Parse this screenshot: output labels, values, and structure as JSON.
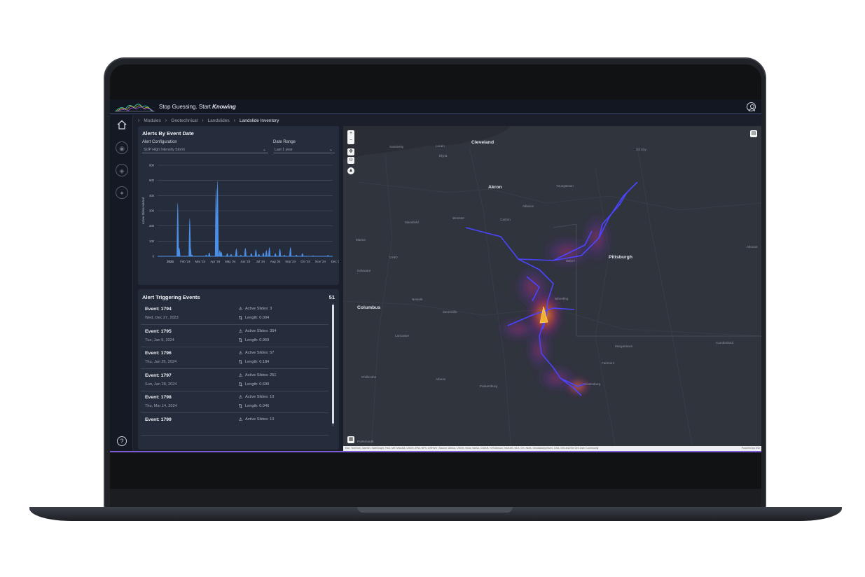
{
  "header": {
    "tagline_prefix": "Stop Guessing. Start ",
    "tagline_emphasis": "Knowing"
  },
  "breadcrumb": [
    "Modules",
    "Geotechnical",
    "Landslides",
    "Landslide Inventory"
  ],
  "sidebar": {
    "icons": [
      "home-icon",
      "module-icon-1",
      "module-icon-2",
      "module-icon-3",
      "help-icon"
    ],
    "help_label": "?"
  },
  "alerts_panel": {
    "title": "Alerts By Event Date",
    "config_label": "Alert Configuration",
    "config_value": "SOP High Intensity Storm",
    "range_label": "Date Range",
    "range_value": "Last 1 year"
  },
  "chart_data": {
    "type": "bar",
    "ylabel": "Active Slides Alerted",
    "ylim": [
      0,
      600
    ],
    "yticks": [
      0,
      100,
      200,
      300,
      400,
      500,
      600
    ],
    "xticks": [
      "2024",
      "Feb '24",
      "Mar '24",
      "Apr '24",
      "May '24",
      "Jun '24",
      "Jul '24",
      "Aug '24",
      "Sep '24",
      "Oct '24",
      "Nov '24",
      "Dec '2"
    ],
    "series": [
      {
        "x": [
          0.5,
          0.6,
          1.3,
          1.35,
          1.45,
          2.4,
          2.6,
          3.05,
          3.15,
          3.3,
          3.4,
          3.8,
          4.05,
          4.4,
          4.7,
          5.0,
          5.4,
          5.7,
          5.9,
          6.2,
          6.4,
          6.6,
          7.0,
          7.3,
          7.6,
          8.0,
          8.4,
          8.8,
          9.5,
          10.5
        ],
        "values": [
          354,
          57,
          251,
          60,
          10,
          10,
          25,
          450,
          500,
          40,
          30,
          20,
          15,
          50,
          10,
          55,
          20,
          45,
          15,
          25,
          40,
          60,
          20,
          50,
          10,
          60,
          10,
          20,
          5,
          8
        ]
      }
    ]
  },
  "events_panel": {
    "title": "Alert Triggering Events",
    "count": "51",
    "active_prefix": "Active Slides: ",
    "length_prefix": "Length: ",
    "rows": [
      {
        "name": "Event: 1794",
        "date": "Wed, Dec 27, 2023",
        "active": "Active Slides: 3",
        "length": "Length: 0.004"
      },
      {
        "name": "Event: 1795",
        "date": "Tue, Jan 9, 2024",
        "active": "Active Slides: 354",
        "length": "Length: 0.969"
      },
      {
        "name": "Event: 1796",
        "date": "Thu, Jan 25, 2024",
        "active": "Active Slides: 57",
        "length": "Length: 0.184"
      },
      {
        "name": "Event: 1797",
        "date": "Sun, Jan 28, 2024",
        "active": "Active Slides: 251",
        "length": "Length: 0.690"
      },
      {
        "name": "Event: 1798",
        "date": "Thu, Mar 14, 2024",
        "active": "Active Slides: 10",
        "length": "Length: 0.046"
      },
      {
        "name": "Event: 1799",
        "date": "",
        "active": "Active Slides: 10",
        "length": ""
      }
    ]
  },
  "map": {
    "labels": [
      {
        "text": "Cleveland",
        "major": true
      },
      {
        "text": "Akron",
        "major": true
      },
      {
        "text": "Pittsburgh",
        "major": true
      },
      {
        "text": "Columbus",
        "major": true
      },
      {
        "text": "Sandusky"
      },
      {
        "text": "Lorain"
      },
      {
        "text": "Elyria"
      },
      {
        "text": "Oil City"
      },
      {
        "text": "Youngstown"
      },
      {
        "text": "Alliance"
      },
      {
        "text": "Mansfield"
      },
      {
        "text": "Wooster"
      },
      {
        "text": "Canton"
      },
      {
        "text": "Marion"
      },
      {
        "text": "OHIO"
      },
      {
        "text": "Delaware"
      },
      {
        "text": "Newark"
      },
      {
        "text": "Zanesville"
      },
      {
        "text": "Lancaster"
      },
      {
        "text": "Wheeling"
      },
      {
        "text": "Chillicothe"
      },
      {
        "text": "Athens"
      },
      {
        "text": "Parkersburg"
      },
      {
        "text": "Morgantown"
      },
      {
        "text": "Fairmont"
      },
      {
        "text": "Clarksburg"
      },
      {
        "text": "Cumberland"
      },
      {
        "text": "Altoona"
      },
      {
        "text": "Portsmouth"
      },
      {
        "text": "WEST"
      }
    ],
    "zoom_in": "+",
    "zoom_out": "−",
    "attribution": "Esri, TomTom, Garmin, SafeGraph, FAO, METI/NASA, USGS, EPA, NPS, USFWS | Source: Airbus, USGS, NGA, NASA, CGIAR, N Robinson, NCEAS, NLS, OS, NMA, Geodatastyrelsen, GSA, GSI and the GIS User Community",
    "powered": "Powered by Esri"
  },
  "colors": {
    "accent": "#7b5cd6",
    "bar": "#4a8fe8",
    "panel": "#252c3b",
    "route": "#4a44ff",
    "heat_hot": "#e05a20"
  }
}
